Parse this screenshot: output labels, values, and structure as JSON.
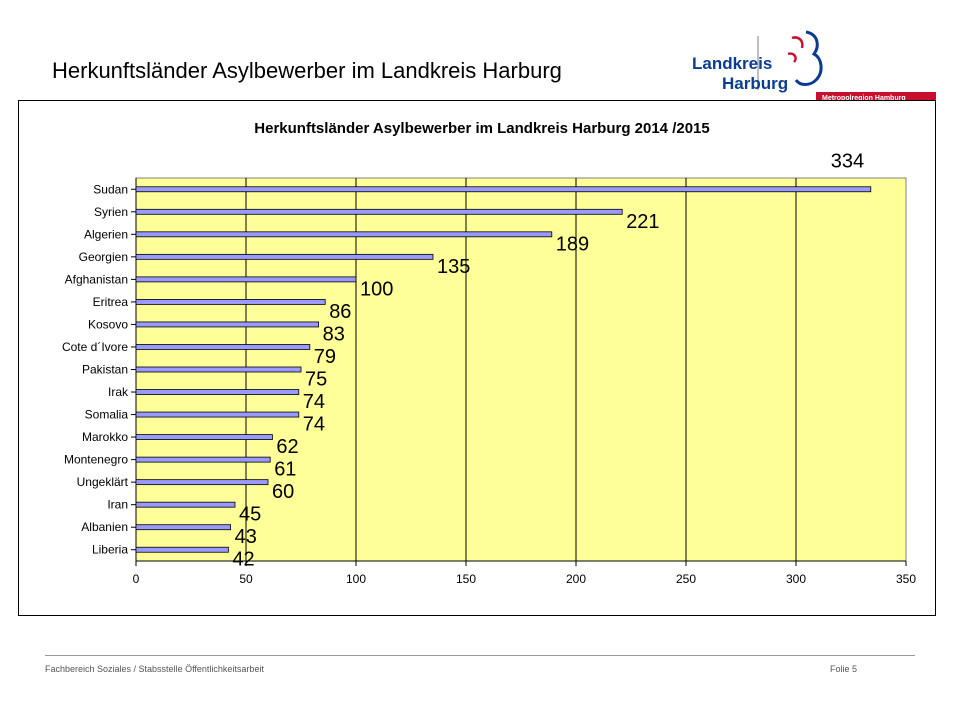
{
  "slide": {
    "title": "Herkunftsländer Asylbewerber im Landkreis Harburg",
    "footer_left": "Fachbereich Soziales / Stabsstelle Öffentlichkeitsarbeit",
    "footer_right": "Folie 5"
  },
  "logo": {
    "line1": "Landkreis",
    "line2": "Harburg",
    "band": "Metropolregion Hamburg",
    "brand_blue": "#0a3d91",
    "brand_red": "#c8102e"
  },
  "chart_data": {
    "type": "bar",
    "orientation": "horizontal",
    "title": "Herkunftsländer Asylbewerber im Landkreis Harburg 2014 /2015",
    "categories": [
      "Sudan",
      "Syrien",
      "Algerien",
      "Georgien",
      "Afghanistan",
      "Eritrea",
      "Kosovo",
      "Cote d´Ivore",
      "Pakistan",
      "Irak",
      "Somalia",
      "Marokko",
      "Montenegro",
      "Ungeklärt",
      "Iran",
      "Albanien",
      "Liberia"
    ],
    "values": [
      334,
      221,
      189,
      135,
      100,
      86,
      83,
      79,
      75,
      74,
      74,
      62,
      61,
      60,
      45,
      43,
      42
    ],
    "data_labels": [
      "334",
      "221",
      "189",
      "135",
      "100",
      "86",
      "83",
      "79",
      "75",
      "74",
      "74",
      "62",
      "61",
      "60",
      "45",
      "43",
      "42"
    ],
    "xlim": [
      0,
      350
    ],
    "x_ticks": [
      "0",
      "50",
      "100",
      "150",
      "200",
      "250",
      "300",
      "350"
    ],
    "xlabel": "",
    "ylabel": "",
    "grid": "vertical",
    "legend": "none",
    "plot_background": "#ffff99",
    "bar_color": "#9999ff"
  }
}
